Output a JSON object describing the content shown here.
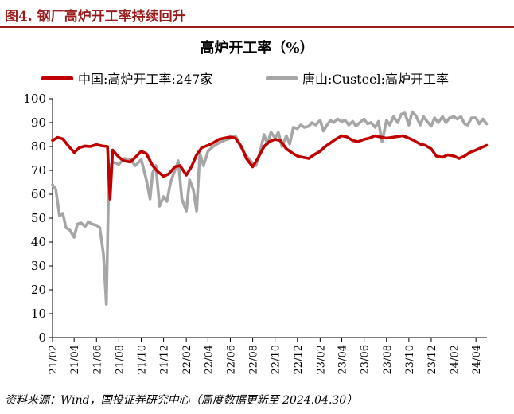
{
  "figure": {
    "label": "图4. 钢厂高炉开工率持续回升",
    "source": "资料来源：Wind，国投证券研究中心（周度数据更新至 2024.04.30）",
    "colors": {
      "accent": "#9b1c1c"
    }
  },
  "chart_data": {
    "type": "line",
    "title": "高炉开工率（%）",
    "xlabel": "",
    "ylabel": "",
    "ylim": [
      0,
      100
    ],
    "yticks": [
      0,
      10,
      20,
      30,
      40,
      50,
      60,
      70,
      80,
      90,
      100
    ],
    "x_range": [
      "2021-02",
      "2024-05"
    ],
    "xticks": [
      "21/02",
      "21/04",
      "21/06",
      "21/08",
      "21/10",
      "21/12",
      "22/02",
      "22/04",
      "22/06",
      "22/08",
      "22/10",
      "22/12",
      "23/02",
      "23/04",
      "23/06",
      "23/08",
      "23/10",
      "23/12",
      "24/02",
      "24/04"
    ],
    "grid": false,
    "legend": "top",
    "series": [
      {
        "name": "中国:高炉开工率:247家",
        "color": "#c00000",
        "points": [
          [
            "2021-02-01",
            82.5
          ],
          [
            "2021-02-15",
            83.8
          ],
          [
            "2021-03-01",
            83.2
          ],
          [
            "2021-03-15",
            80.5
          ],
          [
            "2021-04-01",
            77.5
          ],
          [
            "2021-04-15",
            79.5
          ],
          [
            "2021-05-01",
            80.2
          ],
          [
            "2021-05-15",
            80.0
          ],
          [
            "2021-06-01",
            80.8
          ],
          [
            "2021-06-15",
            80.3
          ],
          [
            "2021-07-01",
            80.0
          ],
          [
            "2021-07-08",
            58.0
          ],
          [
            "2021-07-15",
            78.5
          ],
          [
            "2021-08-01",
            75.5
          ],
          [
            "2021-08-15",
            74.0
          ],
          [
            "2021-09-01",
            73.5
          ],
          [
            "2021-09-15",
            75.5
          ],
          [
            "2021-10-01",
            78.0
          ],
          [
            "2021-10-15",
            77.0
          ],
          [
            "2021-11-01",
            72.0
          ],
          [
            "2021-11-15",
            69.5
          ],
          [
            "2021-12-01",
            67.5
          ],
          [
            "2021-12-15",
            68.5
          ],
          [
            "2022-01-01",
            71.5
          ],
          [
            "2022-01-15",
            72.0
          ],
          [
            "2022-02-01",
            68.0
          ],
          [
            "2022-02-15",
            71.5
          ],
          [
            "2022-03-01",
            76.5
          ],
          [
            "2022-03-15",
            79.5
          ],
          [
            "2022-04-01",
            80.5
          ],
          [
            "2022-04-15",
            81.5
          ],
          [
            "2022-05-01",
            83.0
          ],
          [
            "2022-05-15",
            83.5
          ],
          [
            "2022-06-01",
            84.0
          ],
          [
            "2022-06-15",
            83.5
          ],
          [
            "2022-07-01",
            80.0
          ],
          [
            "2022-07-15",
            75.0
          ],
          [
            "2022-08-01",
            71.5
          ],
          [
            "2022-08-15",
            75.0
          ],
          [
            "2022-09-01",
            80.0
          ],
          [
            "2022-09-15",
            82.0
          ],
          [
            "2022-10-01",
            83.0
          ],
          [
            "2022-10-15",
            82.5
          ],
          [
            "2022-11-01",
            79.0
          ],
          [
            "2022-11-15",
            77.5
          ],
          [
            "2022-12-01",
            76.0
          ],
          [
            "2022-12-15",
            75.5
          ],
          [
            "2023-01-01",
            75.0
          ],
          [
            "2023-01-15",
            76.5
          ],
          [
            "2023-02-01",
            78.0
          ],
          [
            "2023-02-15",
            80.0
          ],
          [
            "2023-03-01",
            81.5
          ],
          [
            "2023-03-15",
            83.0
          ],
          [
            "2023-04-01",
            84.5
          ],
          [
            "2023-04-15",
            84.0
          ],
          [
            "2023-05-01",
            82.5
          ],
          [
            "2023-05-15",
            82.0
          ],
          [
            "2023-06-01",
            83.0
          ],
          [
            "2023-06-15",
            83.5
          ],
          [
            "2023-07-01",
            84.5
          ],
          [
            "2023-07-15",
            84.0
          ],
          [
            "2023-08-01",
            83.5
          ],
          [
            "2023-08-15",
            83.8
          ],
          [
            "2023-09-01",
            84.2
          ],
          [
            "2023-09-15",
            84.5
          ],
          [
            "2023-10-01",
            83.5
          ],
          [
            "2023-10-15",
            82.5
          ],
          [
            "2023-11-01",
            81.0
          ],
          [
            "2023-11-15",
            80.5
          ],
          [
            "2023-12-01",
            79.0
          ],
          [
            "2023-12-15",
            76.0
          ],
          [
            "2024-01-01",
            75.5
          ],
          [
            "2024-01-15",
            76.5
          ],
          [
            "2024-02-01",
            76.0
          ],
          [
            "2024-02-15",
            75.0
          ],
          [
            "2024-03-01",
            76.0
          ],
          [
            "2024-03-15",
            77.5
          ],
          [
            "2024-04-01",
            78.5
          ],
          [
            "2024-04-15",
            79.5
          ],
          [
            "2024-04-30",
            80.5
          ]
        ]
      },
      {
        "name": "唐山:Custeel:高炉开工率",
        "color": "#a6a6a6",
        "points": [
          [
            "2021-02-01",
            64.0
          ],
          [
            "2021-02-10",
            62.0
          ],
          [
            "2021-02-20",
            51.0
          ],
          [
            "2021-03-01",
            52.0
          ],
          [
            "2021-03-10",
            46.0
          ],
          [
            "2021-03-20",
            45.0
          ],
          [
            "2021-04-01",
            42.0
          ],
          [
            "2021-04-10",
            47.5
          ],
          [
            "2021-04-20",
            48.0
          ],
          [
            "2021-05-01",
            46.5
          ],
          [
            "2021-05-10",
            48.5
          ],
          [
            "2021-05-20",
            47.5
          ],
          [
            "2021-06-01",
            47.0
          ],
          [
            "2021-06-10",
            46.0
          ],
          [
            "2021-06-20",
            35.0
          ],
          [
            "2021-06-28",
            14.0
          ],
          [
            "2021-07-05",
            71.0
          ],
          [
            "2021-07-15",
            73.5
          ],
          [
            "2021-08-01",
            72.5
          ],
          [
            "2021-08-15",
            75.0
          ],
          [
            "2021-09-01",
            74.5
          ],
          [
            "2021-09-15",
            72.0
          ],
          [
            "2021-10-01",
            74.5
          ],
          [
            "2021-10-15",
            66.0
          ],
          [
            "2021-10-25",
            58.0
          ],
          [
            "2021-11-01",
            69.0
          ],
          [
            "2021-11-10",
            72.0
          ],
          [
            "2021-11-20",
            55.0
          ],
          [
            "2021-12-01",
            59.0
          ],
          [
            "2021-12-10",
            57.0
          ],
          [
            "2021-12-20",
            65.0
          ],
          [
            "2022-01-01",
            70.0
          ],
          [
            "2022-01-10",
            74.0
          ],
          [
            "2022-01-20",
            58.0
          ],
          [
            "2022-02-01",
            53.0
          ],
          [
            "2022-02-10",
            66.0
          ],
          [
            "2022-02-20",
            62.0
          ],
          [
            "2022-03-01",
            53.0
          ],
          [
            "2022-03-10",
            77.0
          ],
          [
            "2022-03-20",
            72.0
          ],
          [
            "2022-04-01",
            78.0
          ],
          [
            "2022-04-15",
            80.0
          ],
          [
            "2022-05-01",
            81.5
          ],
          [
            "2022-05-15",
            82.5
          ],
          [
            "2022-06-01",
            83.5
          ],
          [
            "2022-06-15",
            84.5
          ],
          [
            "2022-07-01",
            79.5
          ],
          [
            "2022-07-15",
            76.0
          ],
          [
            "2022-08-01",
            73.0
          ],
          [
            "2022-08-10",
            72.0
          ],
          [
            "2022-08-20",
            77.0
          ],
          [
            "2022-09-01",
            85.0
          ],
          [
            "2022-09-10",
            81.0
          ],
          [
            "2022-09-20",
            86.0
          ],
          [
            "2022-10-01",
            83.5
          ],
          [
            "2022-10-10",
            86.0
          ],
          [
            "2022-10-20",
            80.0
          ],
          [
            "2022-11-01",
            84.5
          ],
          [
            "2022-11-10",
            81.0
          ],
          [
            "2022-11-20",
            88.0
          ],
          [
            "2022-12-01",
            87.5
          ],
          [
            "2022-12-10",
            89.0
          ],
          [
            "2022-12-20",
            88.0
          ],
          [
            "2023-01-01",
            88.5
          ],
          [
            "2023-01-10",
            90.0
          ],
          [
            "2023-01-20",
            89.0
          ],
          [
            "2023-02-01",
            91.0
          ],
          [
            "2023-02-10",
            86.5
          ],
          [
            "2023-02-20",
            89.0
          ],
          [
            "2023-03-01",
            91.0
          ],
          [
            "2023-03-10",
            90.0
          ],
          [
            "2023-03-20",
            91.5
          ],
          [
            "2023-04-01",
            90.5
          ],
          [
            "2023-04-10",
            91.0
          ],
          [
            "2023-04-20",
            89.0
          ],
          [
            "2023-05-01",
            90.5
          ],
          [
            "2023-05-10",
            88.5
          ],
          [
            "2023-05-20",
            90.0
          ],
          [
            "2023-06-01",
            91.5
          ],
          [
            "2023-06-10",
            89.5
          ],
          [
            "2023-06-20",
            90.0
          ],
          [
            "2023-07-01",
            88.0
          ],
          [
            "2023-07-10",
            90.5
          ],
          [
            "2023-07-20",
            82.0
          ],
          [
            "2023-08-01",
            91.0
          ],
          [
            "2023-08-10",
            89.0
          ],
          [
            "2023-08-20",
            92.5
          ],
          [
            "2023-09-01",
            90.0
          ],
          [
            "2023-09-10",
            93.5
          ],
          [
            "2023-09-20",
            94.0
          ],
          [
            "2023-10-01",
            89.0
          ],
          [
            "2023-10-10",
            94.5
          ],
          [
            "2023-10-20",
            93.0
          ],
          [
            "2023-11-01",
            89.0
          ],
          [
            "2023-11-10",
            92.5
          ],
          [
            "2023-11-20",
            90.5
          ],
          [
            "2023-12-01",
            88.5
          ],
          [
            "2023-12-10",
            92.0
          ],
          [
            "2023-12-20",
            90.0
          ],
          [
            "2024-01-01",
            92.5
          ],
          [
            "2024-01-10",
            90.0
          ],
          [
            "2024-01-20",
            92.0
          ],
          [
            "2024-02-01",
            92.5
          ],
          [
            "2024-02-10",
            91.5
          ],
          [
            "2024-02-20",
            92.5
          ],
          [
            "2024-03-01",
            89.5
          ],
          [
            "2024-03-10",
            89.0
          ],
          [
            "2024-03-20",
            92.0
          ],
          [
            "2024-04-01",
            92.0
          ],
          [
            "2024-04-10",
            89.5
          ],
          [
            "2024-04-20",
            91.5
          ],
          [
            "2024-04-30",
            89.5
          ]
        ]
      }
    ]
  }
}
